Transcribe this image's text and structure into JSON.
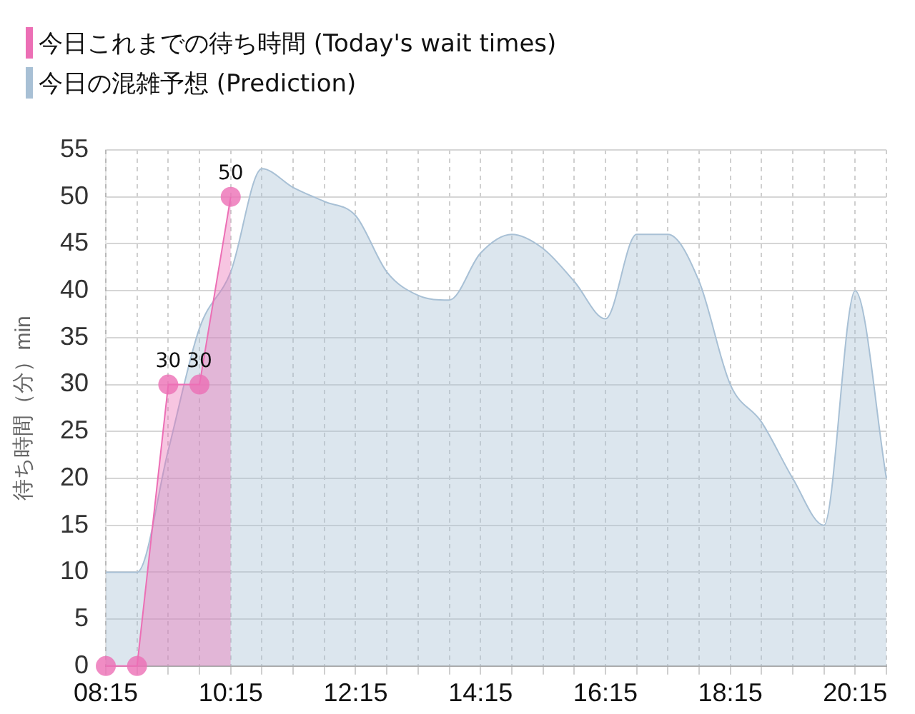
{
  "chart_data": {
    "type": "area",
    "ylabel": "待ち時間（分）min",
    "legend": "top left",
    "grid": true,
    "xlim": [
      8.25,
      20.75
    ],
    "xticks": [
      {
        "value": 8.25,
        "label": "08:15"
      },
      {
        "value": 8.75,
        "label": null
      },
      {
        "value": 9.25,
        "label": null
      },
      {
        "value": 9.75,
        "label": null
      },
      {
        "value": 10.25,
        "label": "10:15"
      },
      {
        "value": 10.75,
        "label": null
      },
      {
        "value": 11.25,
        "label": null
      },
      {
        "value": 11.75,
        "label": null
      },
      {
        "value": 12.25,
        "label": "12:15"
      },
      {
        "value": 12.75,
        "label": null
      },
      {
        "value": 13.25,
        "label": null
      },
      {
        "value": 13.75,
        "label": null
      },
      {
        "value": 14.25,
        "label": "14:15"
      },
      {
        "value": 14.75,
        "label": null
      },
      {
        "value": 15.25,
        "label": null
      },
      {
        "value": 15.75,
        "label": null
      },
      {
        "value": 16.25,
        "label": "16:15"
      },
      {
        "value": 16.75,
        "label": null
      },
      {
        "value": 17.25,
        "label": null
      },
      {
        "value": 17.75,
        "label": null
      },
      {
        "value": 18.25,
        "label": "18:15"
      },
      {
        "value": 18.75,
        "label": null
      },
      {
        "value": 19.25,
        "label": null
      },
      {
        "value": 19.75,
        "label": null
      },
      {
        "value": 20.25,
        "label": "20:15"
      },
      {
        "value": 20.75,
        "label": null
      }
    ],
    "ylim": [
      0,
      55
    ],
    "yticks": [
      0,
      5,
      10,
      15,
      20,
      25,
      30,
      35,
      40,
      45,
      50,
      55
    ],
    "series": [
      {
        "name": "今日の混雑予想 (Prediction)",
        "color": "#a8c0d5",
        "marker": "none",
        "x": [
          8.25,
          8.75,
          9.25,
          9.75,
          10.25,
          10.75,
          11.25,
          11.75,
          12.25,
          12.75,
          13.25,
          13.75,
          14.25,
          14.75,
          15.25,
          15.75,
          16.25,
          16.75,
          17.25,
          17.75,
          18.25,
          18.75,
          19.25,
          19.75,
          20.25,
          20.75
        ],
        "values": [
          10,
          10,
          23,
          36,
          42,
          53,
          51,
          49.5,
          48,
          42,
          39.5,
          39,
          44,
          46,
          44.5,
          41,
          37,
          46,
          46,
          41,
          30,
          26,
          20,
          15,
          40,
          20
        ]
      },
      {
        "name": "今日これまでの待ち時間 (Today's wait times)",
        "color": "#ec6fb5",
        "marker": "circle",
        "x": [
          8.25,
          8.75,
          9.25,
          9.75,
          10.25
        ],
        "values": [
          0,
          0,
          30,
          30,
          50
        ],
        "value_labels": [
          null,
          null,
          "30",
          "30",
          "50"
        ]
      }
    ]
  }
}
